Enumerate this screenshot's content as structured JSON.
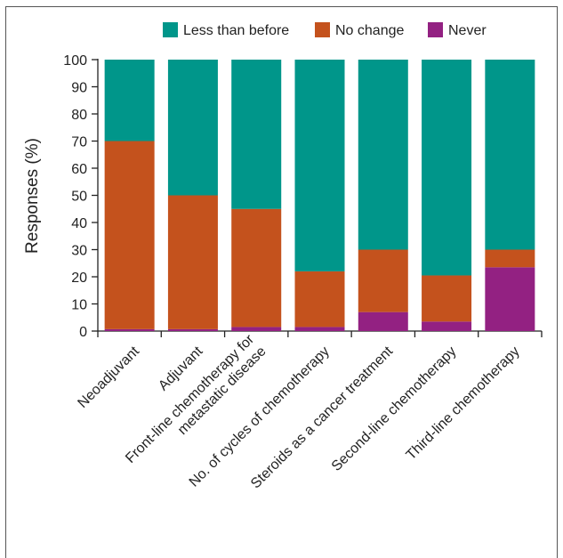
{
  "chart_data": {
    "type": "bar",
    "stacked": true,
    "categories": [
      [
        "Neoadjuvant"
      ],
      [
        "Adjuvant"
      ],
      [
        "Front-line chemotherapy for",
        "metastatic disease"
      ],
      [
        "No. of cycles of chemotherapy"
      ],
      [
        "Steroids as a cancer treatment"
      ],
      [
        "Second-line chemotherapy"
      ],
      [
        "Third-line chemotherapy"
      ]
    ],
    "series": [
      {
        "name": "Never",
        "color": "#932182",
        "values": [
          0.7,
          0.7,
          1.5,
          1.5,
          7,
          3.5,
          23.5
        ]
      },
      {
        "name": "No change",
        "color": "#c4521d",
        "values": [
          69.3,
          49.3,
          43.5,
          20.5,
          23,
          17,
          6.5
        ]
      },
      {
        "name": "Less than before",
        "color": "#00968a",
        "values": [
          30,
          50,
          55,
          78,
          70,
          79.5,
          70
        ]
      }
    ],
    "legend_order": [
      "Less than before",
      "No change",
      "Never"
    ],
    "ylabel": "Responses (%)",
    "ylim": [
      0,
      100
    ],
    "yticks": [
      0,
      10,
      20,
      30,
      40,
      50,
      60,
      70,
      80,
      90,
      100
    ],
    "legend_position": "top",
    "grid": false
  }
}
